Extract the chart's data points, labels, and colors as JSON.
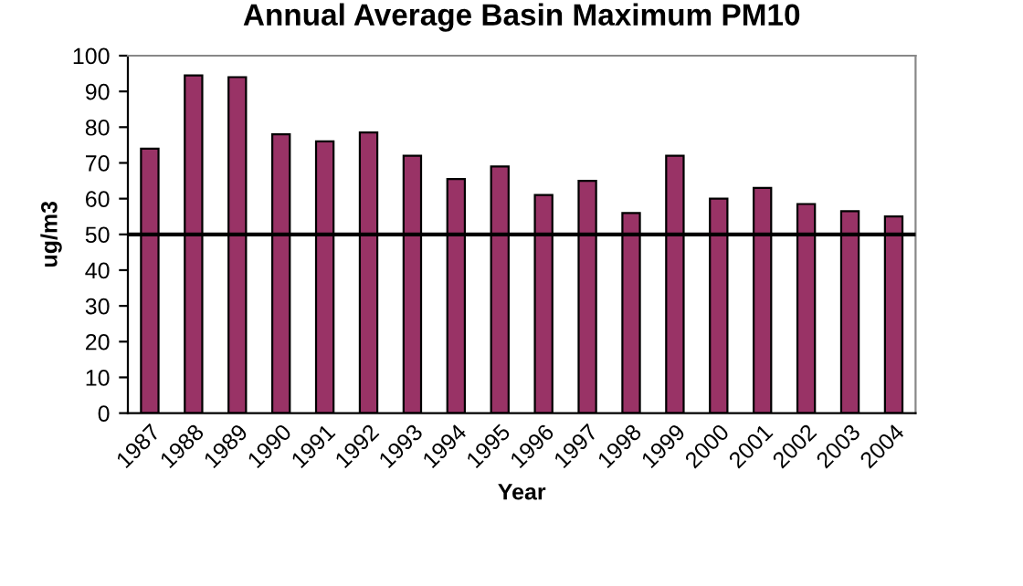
{
  "chart_data": {
    "type": "bar",
    "title": "Annual Average Basin Maximum PM10",
    "xlabel": "Year",
    "ylabel": "ug/m3",
    "categories": [
      "1987",
      "1988",
      "1989",
      "1990",
      "1991",
      "1992",
      "1993",
      "1994",
      "1995",
      "1996",
      "1997",
      "1998",
      "1999",
      "2000",
      "2001",
      "2002",
      "2003",
      "2004"
    ],
    "values": [
      74,
      94.5,
      94,
      78,
      76,
      78.5,
      72,
      65.5,
      69,
      61,
      65,
      56,
      72,
      60,
      63,
      58.5,
      56.5,
      55
    ],
    "color": "#993366",
    "ylim": [
      0,
      100
    ],
    "yticks": [
      0,
      10,
      20,
      30,
      40,
      50,
      60,
      70,
      80,
      90,
      100
    ],
    "ref_lines": [
      {
        "axis": "y",
        "value": 50,
        "label": null,
        "color": "#000000",
        "line_style": "solid"
      }
    ],
    "grid": false,
    "legend": false
  }
}
